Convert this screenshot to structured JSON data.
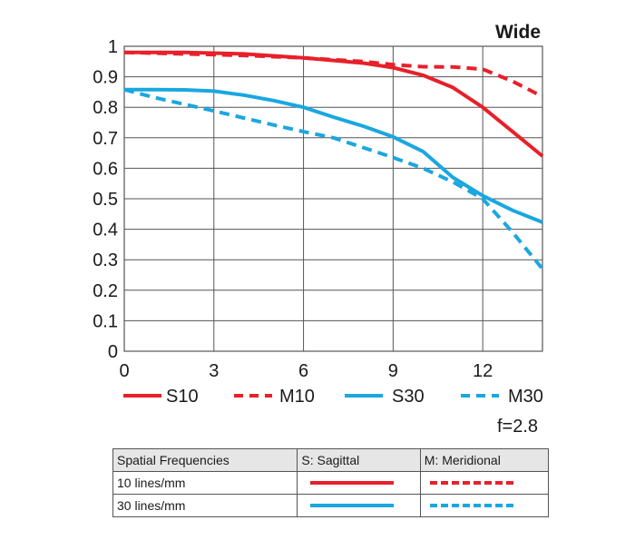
{
  "chart_data": {
    "type": "line",
    "title": "Wide",
    "xlabel": "",
    "ylabel": "",
    "xlim": [
      0,
      14
    ],
    "ylim": [
      0,
      1
    ],
    "x_ticks": [
      "0",
      "3",
      "6",
      "9",
      "12"
    ],
    "x_tick_values": [
      0,
      3,
      6,
      9,
      12
    ],
    "y_ticks": [
      "0",
      "0.1",
      "0.2",
      "0.3",
      "0.4",
      "0.5",
      "0.6",
      "0.7",
      "0.8",
      "0.9",
      "1"
    ],
    "y_tick_values": [
      0,
      0.1,
      0.2,
      0.3,
      0.4,
      0.5,
      0.6,
      0.7,
      0.8,
      0.9,
      1
    ],
    "grid": true,
    "legend_position": "bottom",
    "series": [
      {
        "name": "S10",
        "color": "#e8202a",
        "style": "solid",
        "points": [
          [
            0,
            0.98
          ],
          [
            2,
            0.98
          ],
          [
            4,
            0.975
          ],
          [
            6,
            0.962
          ],
          [
            8,
            0.945
          ],
          [
            9,
            0.93
          ],
          [
            10,
            0.905
          ],
          [
            11,
            0.865
          ],
          [
            12,
            0.8
          ],
          [
            13,
            0.72
          ],
          [
            14,
            0.64
          ]
        ]
      },
      {
        "name": "M10",
        "color": "#e8202a",
        "style": "dashed",
        "points": [
          [
            0,
            0.98
          ],
          [
            2,
            0.975
          ],
          [
            4,
            0.97
          ],
          [
            6,
            0.962
          ],
          [
            8,
            0.95
          ],
          [
            9,
            0.94
          ],
          [
            10,
            0.933
          ],
          [
            11,
            0.932
          ],
          [
            12,
            0.925
          ],
          [
            13,
            0.885
          ],
          [
            14,
            0.835
          ]
        ]
      },
      {
        "name": "S30",
        "color": "#1aa7e0",
        "style": "solid",
        "points": [
          [
            0,
            0.858
          ],
          [
            1,
            0.858
          ],
          [
            2,
            0.857
          ],
          [
            3,
            0.853
          ],
          [
            4,
            0.84
          ],
          [
            5,
            0.822
          ],
          [
            6,
            0.8
          ],
          [
            7,
            0.768
          ],
          [
            8,
            0.738
          ],
          [
            9,
            0.703
          ],
          [
            10,
            0.655
          ],
          [
            11,
            0.57
          ],
          [
            12,
            0.51
          ],
          [
            13,
            0.462
          ],
          [
            14,
            0.423
          ]
        ]
      },
      {
        "name": "M30",
        "color": "#1aa7e0",
        "style": "dashed",
        "points": [
          [
            0,
            0.858
          ],
          [
            1,
            0.832
          ],
          [
            2,
            0.81
          ],
          [
            3,
            0.788
          ],
          [
            4,
            0.765
          ],
          [
            5,
            0.742
          ],
          [
            6,
            0.72
          ],
          [
            7,
            0.7
          ],
          [
            8,
            0.668
          ],
          [
            9,
            0.635
          ],
          [
            10,
            0.6
          ],
          [
            11,
            0.555
          ],
          [
            12,
            0.5
          ],
          [
            13,
            0.39
          ],
          [
            14,
            0.27
          ]
        ]
      }
    ]
  },
  "aperture_label": "f=2.8",
  "table": {
    "headers": [
      "Spatial Frequencies",
      "S: Sagittal",
      "M: Meridional"
    ],
    "rows": [
      {
        "label": "10 lines/mm",
        "sagittal_color": "#e8202a",
        "meridional_color": "#e8202a"
      },
      {
        "label": "30 lines/mm",
        "sagittal_color": "#1aa7e0",
        "meridional_color": "#1aa7e0"
      }
    ]
  }
}
